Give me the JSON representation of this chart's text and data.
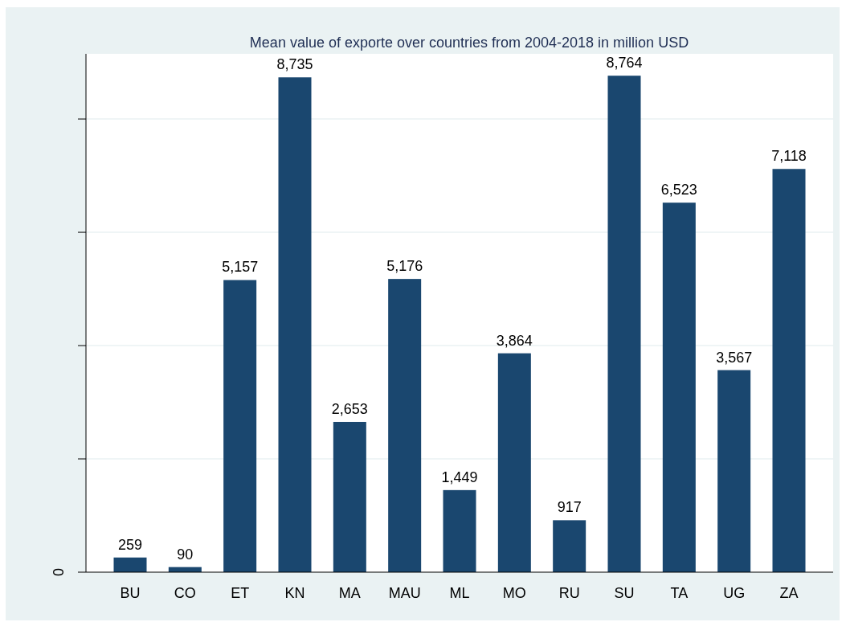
{
  "chart_data": {
    "type": "bar",
    "title": "Mean value of exporte over countries from 2004-2018 in million USD",
    "categories": [
      "BU",
      "CO",
      "ET",
      "KN",
      "MA",
      "MAU",
      "ML",
      "MO",
      "RU",
      "SU",
      "TA",
      "UG",
      "ZA"
    ],
    "values": [
      259,
      90,
      5157,
      8735,
      2653,
      5176,
      1449,
      3864,
      917,
      8764,
      6523,
      3567,
      7118
    ],
    "value_labels": [
      "259",
      "90",
      "5,157",
      "8,735",
      "2,653",
      "5,176",
      "1,449",
      "3,864",
      "917",
      "8,764",
      "6,523",
      "3,567",
      "7,118"
    ],
    "color": "#1a476f",
    "ylim": [
      0,
      9150
    ],
    "yticks": [
      {
        "value": 0,
        "label": null
      },
      {
        "value": 2000,
        "label": null
      },
      {
        "value": 4000,
        "label": null
      },
      {
        "value": 6000,
        "label": null
      },
      {
        "value": 8000,
        "label": null
      }
    ],
    "grid": "y",
    "annotations": [
      "0"
    ]
  }
}
